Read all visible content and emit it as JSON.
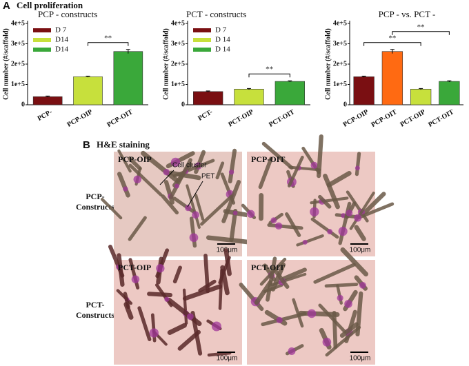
{
  "panel_labels": [
    "A",
    "B"
  ],
  "section_title": "Cell proliferation",
  "chart_data": [
    {
      "type": "bar",
      "title": "PCP - constructs",
      "ylabel": "Cell number (#/scaffold)",
      "categories": [
        "PCP-",
        "PCP-OIP",
        "PCP-OIT"
      ],
      "values": [
        40000,
        138000,
        262000
      ],
      "errors": [
        3000,
        3000,
        10000
      ],
      "colors": [
        "#7a0f12",
        "#c7e03c",
        "#3aa83a"
      ],
      "legend": [
        "D 7",
        "D14",
        "D14"
      ],
      "legend_position": "upper left",
      "significance": [
        {
          "label": "**",
          "between": [
            "PCP-OIP",
            "PCP-OIT"
          ]
        }
      ],
      "ylim": [
        0,
        400000
      ],
      "yticks": [
        0,
        {
          "value": 100000,
          "label": "1e+5"
        },
        {
          "value": 200000,
          "label": "2e+5"
        },
        {
          "value": 300000,
          "label": "3e+5"
        },
        {
          "value": 400000,
          "label": "4e+5"
        }
      ]
    },
    {
      "type": "bar",
      "title": "PCT - constructs",
      "ylabel": "Cell number (#/scaffold)",
      "categories": [
        "PCT-",
        "PCT-OIP",
        "PCT-OIT"
      ],
      "values": [
        65000,
        77000,
        115000
      ],
      "errors": [
        3000,
        3000,
        3000
      ],
      "colors": [
        "#7a0f12",
        "#c7e03c",
        "#3aa83a"
      ],
      "legend": [
        "D 7",
        "D 14",
        "D 14"
      ],
      "legend_position": "upper left",
      "significance": [
        {
          "label": "**",
          "between": [
            "PCT-OIP",
            "PCT-OIT"
          ]
        }
      ],
      "ylim": [
        0,
        400000
      ],
      "yticks": [
        0,
        {
          "value": 100000,
          "label": "1e+5"
        },
        {
          "value": 200000,
          "label": "2e+5"
        },
        {
          "value": 300000,
          "label": "3e+5"
        },
        {
          "value": 400000,
          "label": "4e+5"
        }
      ]
    },
    {
      "type": "bar",
      "title": "PCP - vs. PCT -",
      "ylabel": "Cell number (#/scaffold)",
      "categories": [
        "PCP-OIP",
        "PCP-OIT",
        "PCT-OIP",
        "PCT-OIT"
      ],
      "values": [
        138000,
        262000,
        77000,
        115000
      ],
      "errors": [
        3000,
        10000,
        3000,
        3000
      ],
      "colors": [
        "#7a0f12",
        "#ff6a12",
        "#c7e03c",
        "#3aa83a"
      ],
      "significance": [
        {
          "label": "**",
          "between": [
            "PCP-OIP",
            "PCT-OIP"
          ]
        },
        {
          "label": "**",
          "between": [
            "PCP-OIT",
            "PCT-OIT"
          ]
        }
      ],
      "ylim": [
        0,
        400000
      ],
      "yticks": [
        0,
        {
          "value": 100000,
          "label": "1e+5"
        },
        {
          "value": 200000,
          "label": "2e+5"
        },
        {
          "value": 300000,
          "label": "3e+5"
        },
        {
          "value": 400000,
          "label": "4e+5"
        }
      ]
    }
  ],
  "staining": {
    "title": "H&E staining",
    "rows": [
      {
        "label_lines": [
          "PCP-",
          "Constructs"
        ],
        "images": [
          {
            "label": "PCP-OIP",
            "scale": "100μm"
          },
          {
            "label": "PCP-OIT",
            "scale": "100μm"
          }
        ]
      },
      {
        "label_lines": [
          "PCT-",
          "Constructs"
        ],
        "images": [
          {
            "label": "PCT-OIP",
            "scale": "100μm"
          },
          {
            "label": "PCT-OIT",
            "scale": "100μm"
          }
        ]
      }
    ],
    "annotations": [
      "Cell cluster",
      "PET"
    ]
  }
}
